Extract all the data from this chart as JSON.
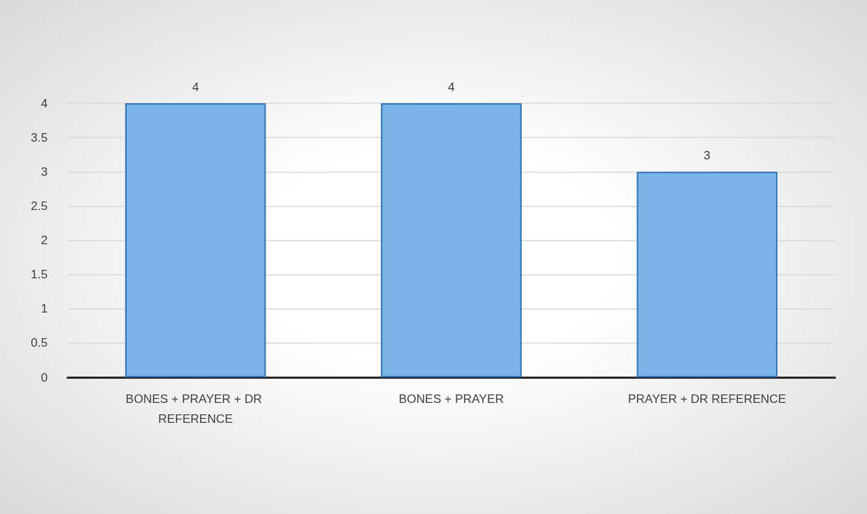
{
  "chart_data": {
    "type": "bar",
    "categories": [
      "BONES + PRAYER + DR REFERENCE",
      "BONES + PRAYER",
      "PRAYER + DR REFERENCE"
    ],
    "values": [
      4,
      4,
      3
    ],
    "color": "#7cb4e8",
    "ylim": [
      0,
      4
    ],
    "yticks": [
      0,
      0.5,
      1,
      1.5,
      2,
      2.5,
      3,
      3.5,
      4
    ],
    "grid": true,
    "data_labels": true
  }
}
